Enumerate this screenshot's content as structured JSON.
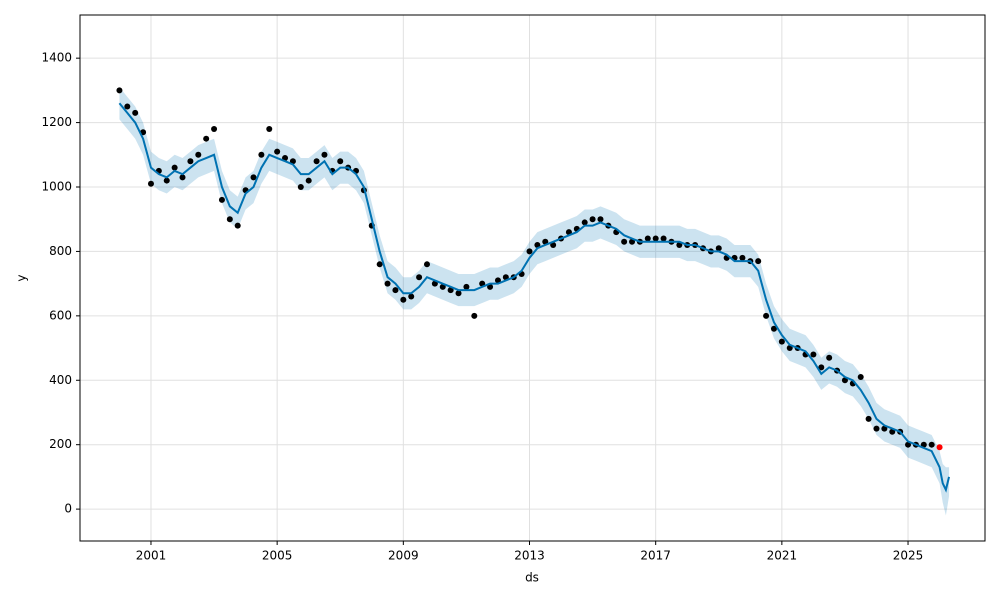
{
  "chart_data": {
    "type": "forecast",
    "x_label": "ds",
    "y_label": "y",
    "xlim": [
      1998.75,
      2027.44
    ],
    "ylim": [
      -99,
      1534
    ],
    "xticks": [
      2001,
      2005,
      2009,
      2013,
      2017,
      2021,
      2025
    ],
    "yticks": [
      0,
      200,
      400,
      600,
      800,
      1000,
      1200,
      1400
    ],
    "grid": true,
    "x": [
      2000,
      2000.25,
      2000.5,
      2000.75,
      2001,
      2001.25,
      2001.5,
      2001.75,
      2002,
      2002.25,
      2002.5,
      2002.75,
      2003,
      2003.25,
      2003.5,
      2003.75,
      2004,
      2004.25,
      2004.5,
      2004.75,
      2005,
      2005.25,
      2005.5,
      2005.75,
      2006,
      2006.25,
      2006.5,
      2006.75,
      2007,
      2007.25,
      2007.5,
      2007.75,
      2008,
      2008.25,
      2008.5,
      2008.75,
      2009,
      2009.25,
      2009.5,
      2009.75,
      2010,
      2010.25,
      2010.5,
      2010.75,
      2011,
      2011.25,
      2011.5,
      2011.75,
      2012,
      2012.25,
      2012.5,
      2012.75,
      2013,
      2013.25,
      2013.5,
      2013.75,
      2014,
      2014.25,
      2014.5,
      2014.75,
      2015,
      2015.25,
      2015.5,
      2015.75,
      2016,
      2016.25,
      2016.5,
      2016.75,
      2017,
      2017.25,
      2017.5,
      2017.75,
      2018,
      2018.25,
      2018.5,
      2018.75,
      2019,
      2019.25,
      2019.5,
      2019.75,
      2020,
      2020.25,
      2020.5,
      2020.75,
      2021,
      2021.25,
      2021.5,
      2021.75,
      2022,
      2022.25,
      2022.5,
      2022.75,
      2023,
      2023.25,
      2023.5,
      2023.75,
      2024,
      2024.25,
      2024.5,
      2024.75,
      2025,
      2025.25,
      2025.5,
      2025.75,
      2026,
      2026.1,
      2026.2,
      2026.3
    ],
    "series": [
      {
        "type": "band",
        "color": "#0072b2",
        "upper": [
          1310,
          1280,
          1250,
          1200,
          1110,
          1090,
          1080,
          1100,
          1090,
          1110,
          1130,
          1140,
          1150,
          1050,
          990,
          970,
          1030,
          1050,
          1110,
          1150,
          1140,
          1130,
          1120,
          1090,
          1090,
          1110,
          1130,
          1090,
          1110,
          1110,
          1090,
          1050,
          950,
          850,
          770,
          750,
          720,
          720,
          740,
          770,
          760,
          750,
          740,
          730,
          730,
          730,
          740,
          750,
          750,
          760,
          770,
          790,
          830,
          860,
          870,
          880,
          890,
          900,
          910,
          930,
          930,
          940,
          930,
          920,
          900,
          890,
          880,
          880,
          880,
          880,
          880,
          880,
          870,
          870,
          860,
          850,
          850,
          840,
          820,
          820,
          820,
          790,
          700,
          630,
          590,
          560,
          550,
          540,
          510,
          470,
          490,
          480,
          460,
          450,
          420,
          380,
          330,
          310,
          300,
          290,
          260,
          250,
          240,
          230,
          180,
          140,
          130,
          130
        ],
        "lower": [
          1210,
          1180,
          1150,
          1100,
          1010,
          990,
          980,
          1000,
          990,
          1010,
          1030,
          1040,
          1050,
          950,
          890,
          870,
          930,
          950,
          1010,
          1050,
          1040,
          1030,
          1020,
          990,
          990,
          1010,
          1030,
          990,
          1010,
          1010,
          990,
          950,
          850,
          750,
          670,
          650,
          620,
          620,
          640,
          670,
          660,
          650,
          640,
          630,
          630,
          630,
          640,
          650,
          650,
          660,
          670,
          690,
          730,
          760,
          770,
          780,
          790,
          800,
          810,
          830,
          830,
          840,
          830,
          820,
          800,
          790,
          780,
          780,
          780,
          780,
          780,
          780,
          770,
          770,
          760,
          750,
          750,
          740,
          720,
          720,
          720,
          690,
          600,
          530,
          490,
          460,
          450,
          440,
          410,
          370,
          390,
          380,
          360,
          350,
          320,
          280,
          230,
          210,
          200,
          190,
          160,
          150,
          140,
          130,
          80,
          20,
          -20,
          40
        ]
      },
      {
        "type": "line",
        "color": "#0072b2",
        "values": [
          1260,
          1230,
          1200,
          1150,
          1060,
          1040,
          1030,
          1050,
          1040,
          1060,
          1080,
          1090,
          1100,
          1000,
          940,
          920,
          980,
          1000,
          1060,
          1100,
          1090,
          1080,
          1070,
          1040,
          1040,
          1060,
          1080,
          1040,
          1060,
          1060,
          1040,
          1000,
          900,
          800,
          720,
          700,
          670,
          670,
          690,
          720,
          710,
          700,
          690,
          680,
          680,
          680,
          690,
          700,
          700,
          710,
          720,
          740,
          780,
          810,
          820,
          830,
          840,
          850,
          860,
          880,
          880,
          890,
          880,
          870,
          850,
          840,
          830,
          830,
          830,
          830,
          830,
          830,
          820,
          820,
          810,
          800,
          800,
          790,
          770,
          770,
          770,
          740,
          650,
          580,
          540,
          510,
          500,
          490,
          460,
          420,
          440,
          430,
          410,
          400,
          370,
          330,
          280,
          260,
          250,
          240,
          210,
          200,
          190,
          180,
          130,
          80,
          60,
          100
        ]
      },
      {
        "type": "scatter",
        "color": "#000000",
        "values": [
          1300,
          1250,
          1230,
          1170,
          1010,
          1050,
          1020,
          1060,
          1030,
          1080,
          1100,
          1150,
          1180,
          960,
          900,
          880,
          990,
          1030,
          1100,
          1180,
          1110,
          1090,
          1080,
          1000,
          1020,
          1080,
          1100,
          1050,
          1080,
          1060,
          1050,
          990,
          880,
          760,
          700,
          680,
          650,
          660,
          720,
          760,
          700,
          690,
          680,
          670,
          690,
          600,
          700,
          690,
          710,
          720,
          720,
          730,
          800,
          820,
          830,
          820,
          840,
          860,
          870,
          890,
          900,
          900,
          880,
          860,
          830,
          830,
          830,
          840,
          840,
          840,
          830,
          820,
          820,
          820,
          810,
          800,
          810,
          780,
          780,
          780,
          770,
          770,
          600,
          560,
          520,
          500,
          500,
          480,
          480,
          440,
          470,
          430,
          400,
          390,
          410,
          280,
          250,
          250,
          240,
          240,
          200,
          200,
          200,
          200,
          null,
          null,
          null,
          null
        ]
      },
      {
        "type": "scatter",
        "color": "#ff0000",
        "x": [
          2026
        ],
        "values": [
          192
        ]
      }
    ]
  }
}
